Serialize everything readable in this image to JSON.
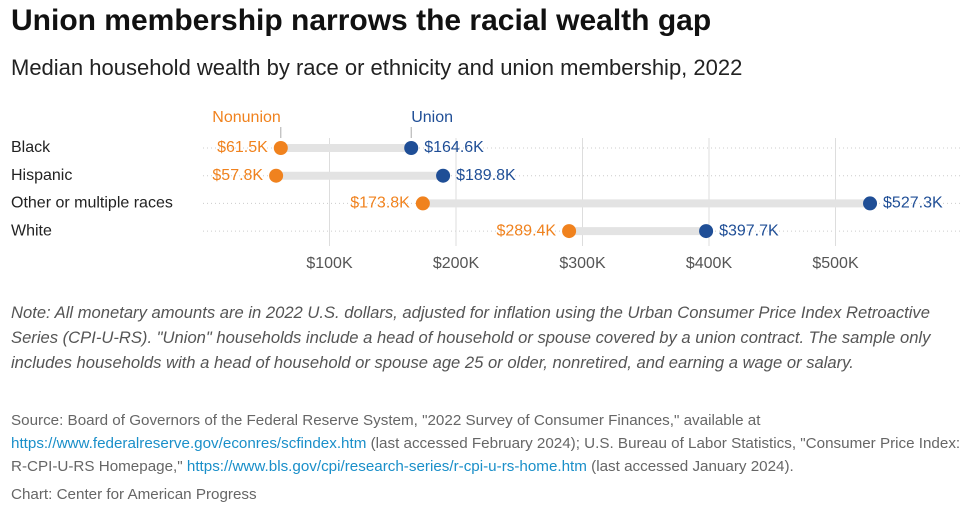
{
  "chart_data": {
    "type": "dumbbell",
    "title": "Union membership narrows the racial wealth gap",
    "subtitle": "Median household wealth by race or ethnicity and union membership, 2022",
    "categories": [
      "Black",
      "Hispanic",
      "Other or multiple races",
      "White"
    ],
    "series": [
      {
        "name": "Nonunion",
        "color": "#f0821e",
        "values": [
          61.5,
          57.8,
          173.8,
          289.4
        ],
        "value_labels": [
          "$61.5K",
          "$57.8K",
          "$173.8K",
          "$289.4K"
        ]
      },
      {
        "name": "Union",
        "color": "#1f4e96",
        "values": [
          164.6,
          189.8,
          527.3,
          397.7
        ],
        "value_labels": [
          "$164.6K",
          "$189.8K",
          "$527.3K",
          "$397.7K"
        ]
      }
    ],
    "xlim": [
      0,
      600
    ],
    "xticks": [
      {
        "value": 100,
        "label": "$100K"
      },
      {
        "value": 200,
        "label": "$200K"
      },
      {
        "value": 300,
        "label": "$300K"
      },
      {
        "value": 400,
        "label": "$400K"
      },
      {
        "value": 500,
        "label": "$500K"
      }
    ],
    "grid": true,
    "note": "Note: All monetary amounts are in 2022 U.S. dollars, adjusted for inflation using the Urban Consumer Price Index Retroactive Series (CPI-U-RS). \"Union\" households include a head of household or spouse covered by a union contract. The sample only includes households with a head of household or spouse age 25 or older, nonretired, and earning a wage or salary.",
    "source": [
      "Source: Board of Governors of the Federal Reserve System, \"2022 Survey of Consumer Finances,\" available at ",
      "https://www.federalreserve.gov/econres/scfindex.htm",
      " (last accessed February 2024); U.S. Bureau of Labor Statistics, \"Consumer Price Index: R-CPI-U-RS Homepage,\" ",
      "https://www.bls.gov/cpi/research-series/r-cpi-u-rs-home.htm",
      " (last accessed January 2024)."
    ],
    "credit": "Chart: Center for American Progress"
  }
}
